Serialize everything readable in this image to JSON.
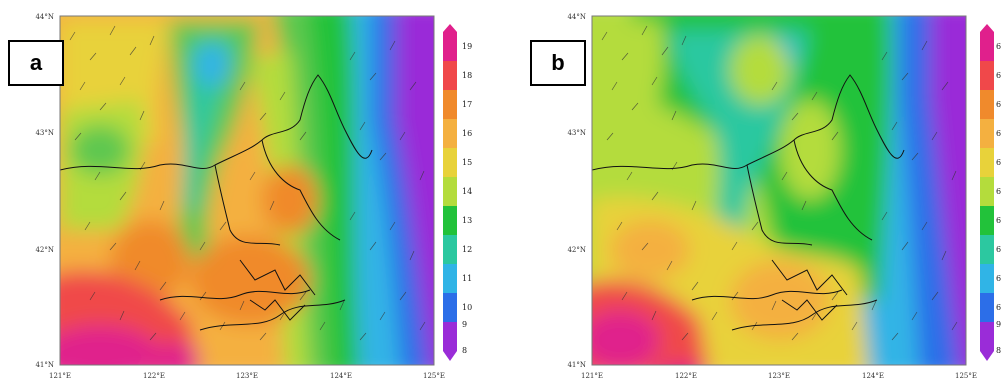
{
  "panels": [
    {
      "id": "a",
      "tag": "a",
      "lat_labels": [
        "44°N",
        "43°N",
        "42°N",
        "41°N"
      ],
      "lon_labels": [
        "121°E",
        "122°E",
        "123°E",
        "124°E",
        "125°E"
      ],
      "colorbar_labels": [
        "19",
        "18",
        "17",
        "16",
        "15",
        "14",
        "13",
        "12",
        "11",
        "10",
        "9",
        "8"
      ]
    },
    {
      "id": "b",
      "tag": "b",
      "lat_labels": [
        "44°N",
        "43°N",
        "42°N",
        "41°N"
      ],
      "lon_labels": [
        "121°E",
        "122°E",
        "123°E",
        "124°E",
        "125°E"
      ],
      "colorbar_labels": [
        "6",
        "6",
        "6",
        "6",
        "6",
        "6",
        "6",
        "6",
        "6",
        "6",
        "9",
        "8"
      ]
    }
  ],
  "colors": {
    "magenta": "#e0208c",
    "red": "#f0484a",
    "orange": "#f08a2c",
    "light_orange": "#f4b040",
    "yellow": "#e8d23a",
    "lime": "#b4dc3c",
    "green": "#5ec850",
    "bright_green": "#22c23a",
    "teal": "#2cc8a0",
    "cyan": "#30b4e6",
    "blue": "#2c6ee8",
    "dark_blue": "#3a3ae0",
    "purple": "#9a2cd8"
  }
}
